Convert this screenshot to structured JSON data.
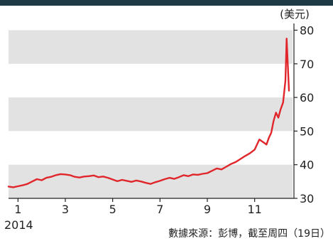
{
  "chart_data": {
    "type": "line",
    "title": "",
    "xlabel": "",
    "ylabel": "",
    "unit_label": "(美元)",
    "year_label": "2014",
    "source_note": "數據來源：彭博，截至周四（19日）",
    "x_ticks": [
      "1",
      "3",
      "5",
      "7",
      "9",
      "11"
    ],
    "x_tick_months": [
      1,
      3,
      5,
      7,
      9,
      11
    ],
    "y_ticks": [
      30,
      40,
      50,
      60,
      70,
      80
    ],
    "ylim": [
      30,
      82
    ],
    "xlim": [
      0.6,
      12.6
    ],
    "grid": "alternating horizontal bands",
    "axis_side": "right",
    "colors": {
      "line": "#e0262b",
      "band": "#e2e2e2",
      "header": "#1e3a44"
    },
    "series": [
      {
        "x": [
          0.6,
          0.8,
          1.0,
          1.2,
          1.4,
          1.6,
          1.8,
          2.0,
          2.2,
          2.4,
          2.6,
          2.8,
          3.0,
          3.2,
          3.4,
          3.6,
          3.8,
          4.0,
          4.2,
          4.4,
          4.6,
          4.8,
          5.0,
          5.2,
          5.4,
          5.6,
          5.8,
          6.0,
          6.2,
          6.4,
          6.6,
          6.8,
          7.0,
          7.2,
          7.4,
          7.6,
          7.8,
          8.0,
          8.2,
          8.4,
          8.6,
          8.8,
          9.0,
          9.2,
          9.4,
          9.6,
          9.8,
          10.0,
          10.2,
          10.4,
          10.6,
          10.8,
          11.0,
          11.1,
          11.2,
          11.3,
          11.4,
          11.5,
          11.6,
          11.7,
          11.8,
          11.9,
          12.0,
          12.1,
          12.2,
          12.3,
          12.35,
          12.4,
          12.45
        ],
        "values": [
          33.5,
          33.3,
          33.6,
          33.9,
          34.3,
          35.0,
          35.7,
          35.4,
          36.1,
          36.4,
          36.9,
          37.2,
          37.1,
          36.9,
          36.4,
          36.2,
          36.5,
          36.6,
          36.8,
          36.3,
          36.5,
          36.1,
          35.6,
          35.1,
          35.5,
          35.2,
          34.9,
          35.3,
          35.0,
          34.6,
          34.3,
          34.8,
          35.2,
          35.7,
          36.1,
          35.8,
          36.3,
          36.9,
          36.6,
          37.1,
          37.0,
          37.3,
          37.5,
          38.2,
          38.9,
          38.6,
          39.4,
          40.2,
          40.8,
          41.7,
          42.6,
          43.4,
          44.5,
          46.0,
          47.5,
          47.0,
          46.5,
          46.0,
          48.0,
          49.5,
          53.0,
          55.5,
          54.0,
          56.5,
          58.5,
          65.0,
          77.5,
          70.0,
          62.0
        ]
      }
    ]
  }
}
